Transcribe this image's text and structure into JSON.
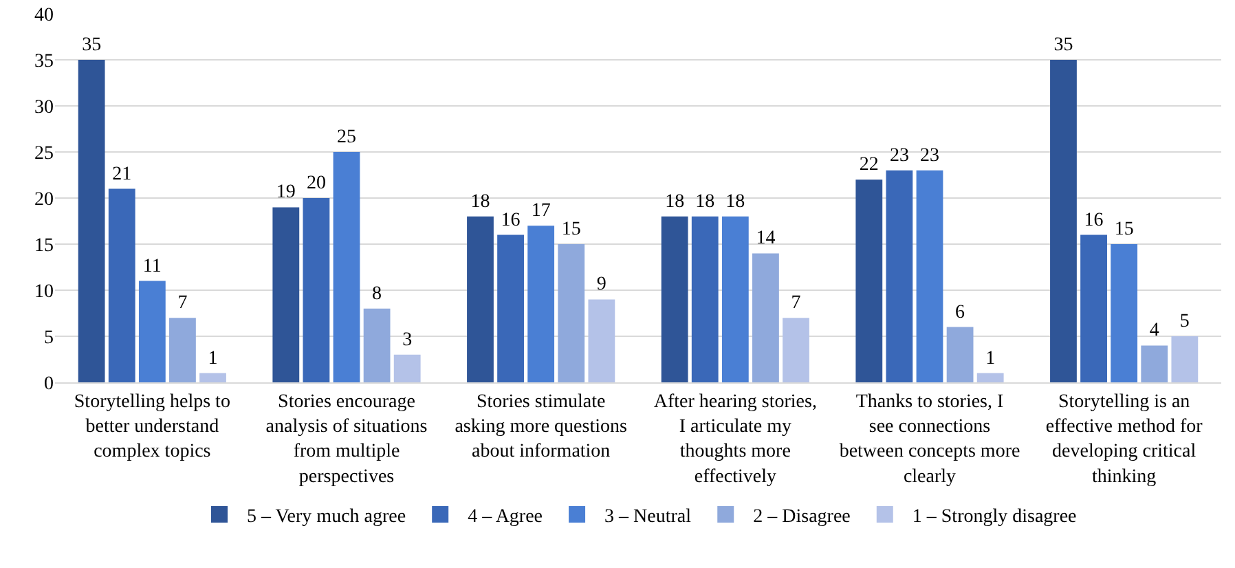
{
  "chart_data": {
    "type": "bar",
    "categories": [
      "Storytelling helps to better understand complex topics",
      "Stories encourage analysis of situations from multiple perspectives",
      "Stories stimulate asking more questions about information",
      "After hearing stories, I articulate my thoughts more effectively",
      "Thanks to stories, I see connections between concepts more clearly",
      "Storytelling is an effective method for developing critical thinking"
    ],
    "series": [
      {
        "name": "5 – Very much agree",
        "color": "#2f5597",
        "values": [
          35,
          19,
          18,
          18,
          22,
          35
        ]
      },
      {
        "name": "4 – Agree",
        "color": "#3a68b8",
        "values": [
          21,
          20,
          16,
          18,
          23,
          16
        ]
      },
      {
        "name": "3 – Neutral",
        "color": "#4a7fd4",
        "values": [
          11,
          25,
          17,
          18,
          23,
          15
        ]
      },
      {
        "name": "2 – Disagree",
        "color": "#8fa9dc",
        "values": [
          7,
          8,
          15,
          14,
          6,
          4
        ]
      },
      {
        "name": "1 – Strongly disagree",
        "color": "#b4c2e8",
        "values": [
          1,
          3,
          9,
          7,
          1,
          5
        ]
      }
    ],
    "ylim": [
      0,
      40
    ],
    "yticks": [
      0,
      5,
      10,
      15,
      20,
      25,
      30,
      35,
      40
    ],
    "grid": "y",
    "legend": "bottom",
    "data_labels": true
  }
}
